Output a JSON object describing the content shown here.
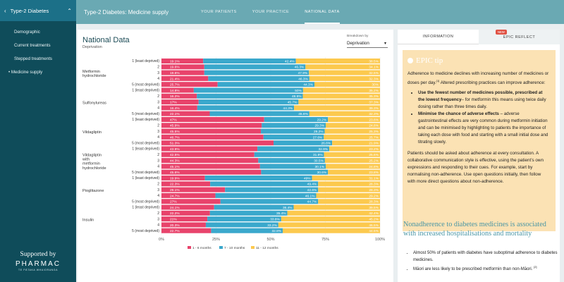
{
  "sidebar": {
    "title": "Type-2 Diabetes",
    "items": [
      "Demographic",
      "Current treatments",
      "Stepped treatments",
      "Medicine supply"
    ],
    "supported_by": "Supported by",
    "org": "PHARMAC",
    "org_sub": "TE PĀTAKA WHAIORANGA"
  },
  "topbar": {
    "title": "Type-2 Diabetes: Medicine supply",
    "tabs": [
      "YOUR PATIENTS",
      "YOUR PRACTICE",
      "NATIONAL DATA"
    ]
  },
  "main": {
    "title": "National Data",
    "subtitle": "Deprivation",
    "breakdown_label": "Breakdown by",
    "breakdown_value": "Deprivation"
  },
  "info": {
    "tab_info": "INFORMATION",
    "tab_epic": "EPIC REFLECT",
    "new_badge": "NEW",
    "epic_title": "EPIC tip",
    "p1": "Adherence to medicine declines with increasing number of medicines or doses per day.",
    "p1_ref": "[1]",
    "p1b": " Altered prescribing practices can improve adherence:",
    "b1_bold": "Use the fewest number of medicines possible, prescribed at the lowest frequency",
    "b1_rest": "– for metformin this means using twice daily dosing rather than three times daily.",
    "b2_bold": "Minimise the chance of adverse effects",
    "b2_rest": " – adverse gastrointestinal effects are very common during metformin initiation and can be minimised by highlighting to patients the importance of taking each dose with food and starting with a small initial dose and titrating slowly.",
    "p3": "Patients should be asked about adherence at every consultation. A collaborative communication style is effective, using the patient’s own expressions and responding to their cues. For example, start by normalising non-adherence. Use open questions initially, then follow with more direct questions about non-adherence.",
    "non_title": "Nonadherence to diabetes medicines is associated with increased hospitalisations and mortality",
    "non_b1": "Almost 50% of patients with diabetes have suboptimal adherence to diabetes medicines.",
    "non_b2": "Māori are less likely to be prescribed metformin than non-Māori.",
    "non_b2_ref": "[2]"
  },
  "chart_data": {
    "type": "bar",
    "stacked": true,
    "orientation": "horizontal",
    "x_ticks": [
      "0%",
      "25%",
      "50%",
      "75%",
      "100%"
    ],
    "xlim": [
      0,
      100
    ],
    "legend": [
      "1 - 6 months",
      "7 - 10 months",
      "11 - 12 months"
    ],
    "colors": [
      "#e8436b",
      "#3aa8cc",
      "#fcc94e"
    ],
    "row_labels": [
      "1 (least deprived)",
      "2",
      "3",
      "4",
      "5 (most deprived)"
    ],
    "groups": [
      {
        "name": [
          "Metformin",
          "hydrochloride"
        ],
        "rows": [
          [
            19.1,
            42.4
          ],
          [
            19.6,
            46.3
          ],
          [
            19.6,
            47.9
          ],
          [
            21.4,
            46.3
          ],
          [
            25.7,
            44.3
          ]
        ]
      },
      {
        "name": [
          "Sulfonylureas"
        ],
        "rows": [
          [
            14.8,
            50
          ],
          [
            16.2,
            48.5
          ],
          [
            17,
            45.7
          ],
          [
            16.4,
            44.3
          ],
          [
            22.1,
            45.6
          ]
        ]
      },
      {
        "name": [
          "Vildagliptin"
        ],
        "rows": [
          [
            47,
            29.2
          ],
          [
            45.9,
            29.3
          ],
          [
            45.5,
            29.2
          ],
          [
            46.7,
            27.6
          ],
          [
            51.3,
            26.8
          ]
        ]
      },
      {
        "name": [
          "Vildagliptin",
          "with",
          "metformin",
          "hydrochloride"
        ],
        "rows": [
          [
            43.9,
            32.9
          ],
          [
            42.5,
            31.9
          ],
          [
            44.3,
            30.5
          ],
          [
            45.1,
            30.1
          ],
          [
            45.6,
            30.6
          ]
        ]
      },
      {
        "name": [
          "Pioglitazone"
        ],
        "rows": [
          [
            19.9,
            49
          ],
          [
            22.3,
            49.4
          ],
          [
            29.1,
            42.6
          ],
          [
            24.7,
            46.1
          ],
          [
            27,
            44.7
          ]
        ]
      },
      {
        "name": [
          "Insulin"
        ],
        "rows": [
          [
            24.1,
            36.4
          ],
          [
            22.2,
            35.4
          ],
          [
            21,
            33.8
          ],
          [
            20.3,
            33.2
          ],
          [
            22.7,
            32.8
          ]
        ]
      }
    ]
  }
}
